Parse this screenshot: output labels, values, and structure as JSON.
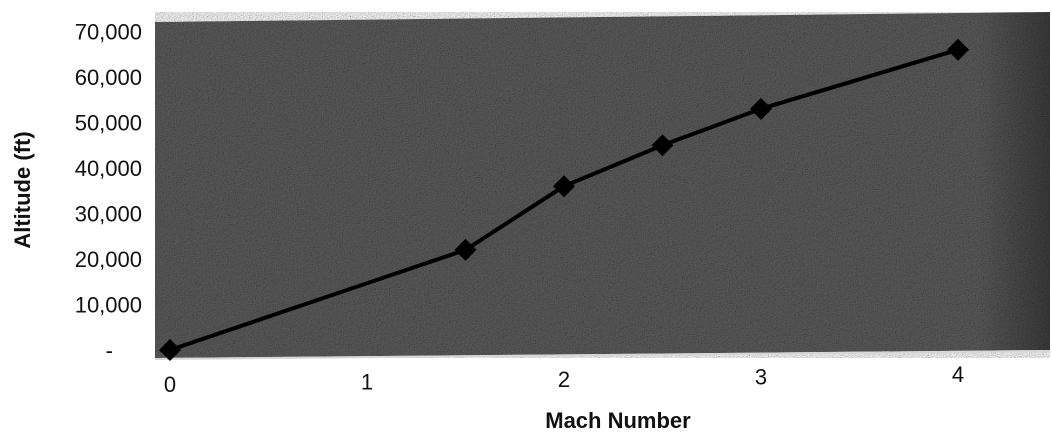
{
  "chart_data": {
    "type": "line",
    "title": "",
    "xlabel": "Mach Number",
    "ylabel": "Altitude (ft)",
    "x": [
      0,
      1.5,
      2,
      2.5,
      3,
      4
    ],
    "series": [
      {
        "values": [
          0,
          22000,
          36000,
          45000,
          53000,
          66000
        ]
      }
    ],
    "xlim": [
      0,
      4
    ],
    "ylim": [
      0,
      70000
    ],
    "xticks": [
      0,
      1,
      2,
      3,
      4
    ],
    "xtick_labels": [
      "0",
      "1",
      "2",
      "3",
      "4"
    ],
    "yticks": [
      0,
      10000,
      20000,
      30000,
      40000,
      50000,
      60000,
      70000
    ],
    "ytick_labels": [
      "-",
      "10,000",
      "20,000",
      "30,000",
      "40,000",
      "50,000",
      "60,000",
      "70,000"
    ],
    "grid": false,
    "legend": "none",
    "colors": {
      "plot_background": "#5c5c5c",
      "line": "#000000",
      "marker": "#000000"
    }
  }
}
